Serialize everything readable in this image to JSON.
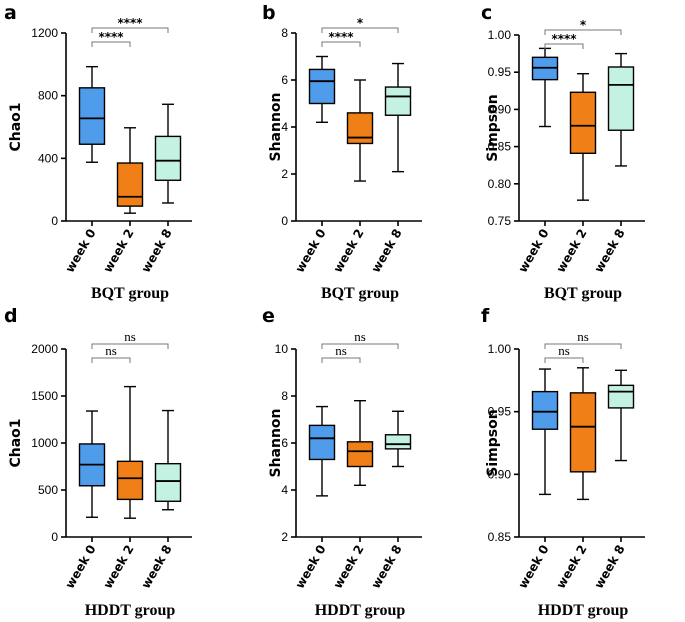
{
  "colors": {
    "week0": "#4f9ceb",
    "week2": "#f07f18",
    "week8": "#c4f2e2"
  },
  "chart_data": [
    {
      "panel": "a",
      "type": "box",
      "group": "BQT group",
      "ylabel": "Chao1",
      "ylim": [
        0,
        1200
      ],
      "yticks": [
        0,
        400,
        800,
        1200
      ],
      "ytick_labels": [
        "0",
        "400",
        "800",
        "1200"
      ],
      "categories": [
        "week 0",
        "week 2",
        "week 8"
      ],
      "boxes": [
        {
          "min": 375,
          "q1": 490,
          "median": 655,
          "q3": 850,
          "max": 985
        },
        {
          "min": 50,
          "q1": 95,
          "median": 155,
          "q3": 370,
          "max": 595
        },
        {
          "min": 115,
          "q1": 260,
          "median": 385,
          "q3": 540,
          "max": 745
        }
      ],
      "comparisons": [
        {
          "from": 0,
          "to": 1,
          "label": "****"
        },
        {
          "from": 0,
          "to": 2,
          "label": "****"
        }
      ]
    },
    {
      "panel": "b",
      "type": "box",
      "group": "BQT group",
      "ylabel": "Shannon",
      "ylim": [
        0,
        8
      ],
      "yticks": [
        0,
        2,
        4,
        6,
        8
      ],
      "ytick_labels": [
        "0",
        "2",
        "4",
        "6",
        "8"
      ],
      "categories": [
        "week 0",
        "week 2",
        "week 8"
      ],
      "boxes": [
        {
          "min": 4.2,
          "q1": 5.0,
          "median": 5.95,
          "q3": 6.45,
          "max": 7.0
        },
        {
          "min": 1.7,
          "q1": 3.3,
          "median": 3.55,
          "q3": 4.6,
          "max": 6.0
        },
        {
          "min": 2.1,
          "q1": 4.5,
          "median": 5.3,
          "q3": 5.7,
          "max": 6.7
        }
      ],
      "comparisons": [
        {
          "from": 0,
          "to": 1,
          "label": "****"
        },
        {
          "from": 0,
          "to": 2,
          "label": "*"
        }
      ]
    },
    {
      "panel": "c",
      "type": "box",
      "group": "BQT group",
      "ylabel": "Simpson",
      "ylim": [
        0.75,
        1.0
      ],
      "yticks": [
        0.75,
        0.8,
        0.85,
        0.9,
        0.95,
        1.0
      ],
      "ytick_labels": [
        "0.75",
        "0.80",
        "0.85",
        "0.90",
        "0.95",
        "1.00"
      ],
      "categories": [
        "week 0",
        "week 2",
        "week 8"
      ],
      "boxes": [
        {
          "min": 0.877,
          "q1": 0.94,
          "median": 0.956,
          "q3": 0.97,
          "max": 0.982
        },
        {
          "min": 0.778,
          "q1": 0.841,
          "median": 0.878,
          "q3": 0.923,
          "max": 0.948
        },
        {
          "min": 0.824,
          "q1": 0.872,
          "median": 0.933,
          "q3": 0.957,
          "max": 0.975
        }
      ],
      "comparisons": [
        {
          "from": 0,
          "to": 1,
          "label": "****"
        },
        {
          "from": 0,
          "to": 2,
          "label": "*"
        }
      ]
    },
    {
      "panel": "d",
      "type": "box",
      "group": "HDDT group",
      "ylabel": "Chao1",
      "ylim": [
        0,
        2000
      ],
      "yticks": [
        0,
        500,
        1000,
        1500,
        2000
      ],
      "ytick_labels": [
        "0",
        "500",
        "1000",
        "1500",
        "2000"
      ],
      "categories": [
        "week 0",
        "week 2",
        "week 8"
      ],
      "boxes": [
        {
          "min": 210,
          "q1": 545,
          "median": 770,
          "q3": 990,
          "max": 1340
        },
        {
          "min": 200,
          "q1": 400,
          "median": 625,
          "q3": 805,
          "max": 1600
        },
        {
          "min": 290,
          "q1": 380,
          "median": 595,
          "q3": 780,
          "max": 1345
        }
      ],
      "comparisons": [
        {
          "from": 0,
          "to": 1,
          "label": "ns"
        },
        {
          "from": 0,
          "to": 2,
          "label": "ns"
        }
      ]
    },
    {
      "panel": "e",
      "type": "box",
      "group": "HDDT group",
      "ylabel": "Shannon",
      "ylim": [
        2,
        10
      ],
      "yticks": [
        2,
        4,
        6,
        8,
        10
      ],
      "ytick_labels": [
        "2",
        "4",
        "6",
        "8",
        "10"
      ],
      "categories": [
        "week 0",
        "week 2",
        "week 8"
      ],
      "boxes": [
        {
          "min": 3.75,
          "q1": 5.3,
          "median": 6.2,
          "q3": 6.75,
          "max": 7.55
        },
        {
          "min": 4.2,
          "q1": 5.0,
          "median": 5.65,
          "q3": 6.05,
          "max": 7.8
        },
        {
          "min": 5.0,
          "q1": 5.75,
          "median": 5.95,
          "q3": 6.35,
          "max": 7.35
        }
      ],
      "comparisons": [
        {
          "from": 0,
          "to": 1,
          "label": "ns"
        },
        {
          "from": 0,
          "to": 2,
          "label": "ns"
        }
      ]
    },
    {
      "panel": "f",
      "type": "box",
      "group": "HDDT group",
      "ylabel": "Simpson",
      "ylim": [
        0.85,
        1.0
      ],
      "yticks": [
        0.85,
        0.9,
        0.95,
        1.0
      ],
      "ytick_labels": [
        "0.85",
        "0.90",
        "0.95",
        "1.00"
      ],
      "categories": [
        "week 0",
        "week 2",
        "week 8"
      ],
      "boxes": [
        {
          "min": 0.884,
          "q1": 0.936,
          "median": 0.95,
          "q3": 0.966,
          "max": 0.984
        },
        {
          "min": 0.88,
          "q1": 0.902,
          "median": 0.938,
          "q3": 0.965,
          "max": 0.985
        },
        {
          "min": 0.911,
          "q1": 0.953,
          "median": 0.966,
          "q3": 0.971,
          "max": 0.983
        }
      ],
      "comparisons": [
        {
          "from": 0,
          "to": 1,
          "label": "ns"
        },
        {
          "from": 0,
          "to": 2,
          "label": "ns"
        }
      ]
    }
  ]
}
